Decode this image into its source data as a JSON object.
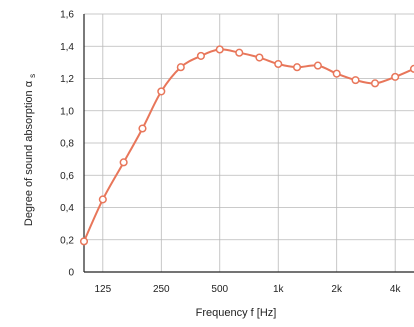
{
  "chart_data": {
    "type": "line",
    "xlabel": "Frequency f [Hz]",
    "ylabel": "Degree of sound absorption α",
    "ylabel_subscript": "s",
    "ylim": [
      0,
      1.6
    ],
    "yticks": [
      {
        "value": 0,
        "label": "0"
      },
      {
        "value": 0.2,
        "label": "0,2"
      },
      {
        "value": 0.4,
        "label": "0,4"
      },
      {
        "value": 0.6,
        "label": "0,6"
      },
      {
        "value": 0.8,
        "label": "0,8"
      },
      {
        "value": 1.0,
        "label": "1,0"
      },
      {
        "value": 1.2,
        "label": "1,2"
      },
      {
        "value": 1.4,
        "label": "1,4"
      },
      {
        "value": 1.6,
        "label": "1,6"
      }
    ],
    "x_scale": "log",
    "xlim": [
      100,
      5000
    ],
    "xticks": [
      {
        "value": 125,
        "label": "125"
      },
      {
        "value": 250,
        "label": "250"
      },
      {
        "value": 500,
        "label": "500"
      },
      {
        "value": 1000,
        "label": "1k"
      },
      {
        "value": 2000,
        "label": "2k"
      },
      {
        "value": 4000,
        "label": "4k"
      }
    ],
    "grid": true,
    "series": [
      {
        "color": "#e8765a",
        "points": [
          {
            "x": 100,
            "y": 0.19
          },
          {
            "x": 125,
            "y": 0.45
          },
          {
            "x": 160,
            "y": 0.68
          },
          {
            "x": 200,
            "y": 0.89
          },
          {
            "x": 250,
            "y": 1.12
          },
          {
            "x": 315,
            "y": 1.27
          },
          {
            "x": 400,
            "y": 1.34
          },
          {
            "x": 500,
            "y": 1.38
          },
          {
            "x": 630,
            "y": 1.36
          },
          {
            "x": 800,
            "y": 1.33
          },
          {
            "x": 1000,
            "y": 1.29
          },
          {
            "x": 1250,
            "y": 1.27
          },
          {
            "x": 1600,
            "y": 1.28
          },
          {
            "x": 2000,
            "y": 1.23
          },
          {
            "x": 2500,
            "y": 1.19
          },
          {
            "x": 3150,
            "y": 1.17
          },
          {
            "x": 4000,
            "y": 1.21
          },
          {
            "x": 5000,
            "y": 1.26
          }
        ]
      }
    ]
  }
}
